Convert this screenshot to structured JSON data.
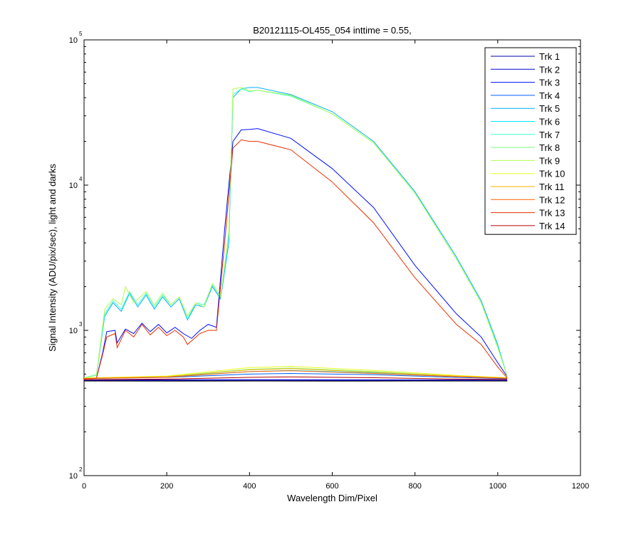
{
  "chart_data": {
    "type": "line",
    "title": "B20121115-OL455_054 inttime = 0.55,",
    "xlabel": "Wavelength Dim/Pixel",
    "ylabel": "Signal Intensity (ADU/pix/sec), light and darks",
    "xlim": [
      0,
      1200
    ],
    "ylim": [
      100,
      100000
    ],
    "yscale": "log",
    "xticks": [
      0,
      200,
      400,
      600,
      800,
      1000,
      1200
    ],
    "yticks": [
      {
        "base": "10",
        "exp": "2",
        "value": 100
      },
      {
        "base": "10",
        "exp": "3",
        "value": 1000
      },
      {
        "base": "10",
        "exp": "4",
        "value": 10000
      },
      {
        "base": "10",
        "exp": "5",
        "value": 100000
      }
    ],
    "grid": false,
    "legend_position": "top-right",
    "series": [
      {
        "name": "Trk 1",
        "color": "#0000a8",
        "points": [
          [
            0,
            450
          ],
          [
            40,
            452
          ],
          [
            200,
            452
          ],
          [
            400,
            453
          ],
          [
            600,
            452
          ],
          [
            800,
            452
          ],
          [
            1023,
            452
          ]
        ]
      },
      {
        "name": "Trk 2",
        "color": "#0000dc",
        "points": [
          [
            0,
            452
          ],
          [
            40,
            455
          ],
          [
            200,
            457
          ],
          [
            400,
            458
          ],
          [
            600,
            457
          ],
          [
            800,
            456
          ],
          [
            1023,
            455
          ]
        ]
      },
      {
        "name": "Trk 3",
        "color": "#0010ff",
        "points": [
          [
            0,
            462
          ],
          [
            30,
            470
          ],
          [
            45,
            700
          ],
          [
            55,
            980
          ],
          [
            75,
            1000
          ],
          [
            80,
            820
          ],
          [
            100,
            1020
          ],
          [
            120,
            950
          ],
          [
            140,
            1120
          ],
          [
            160,
            980
          ],
          [
            180,
            1100
          ],
          [
            200,
            960
          ],
          [
            220,
            1050
          ],
          [
            240,
            950
          ],
          [
            260,
            880
          ],
          [
            280,
            1000
          ],
          [
            300,
            1100
          ],
          [
            320,
            1050
          ],
          [
            340,
            5000
          ],
          [
            360,
            20000
          ],
          [
            380,
            24000
          ],
          [
            400,
            24200
          ],
          [
            420,
            24500
          ],
          [
            500,
            21000
          ],
          [
            600,
            13000
          ],
          [
            700,
            7000
          ],
          [
            800,
            2800
          ],
          [
            900,
            1300
          ],
          [
            960,
            900
          ],
          [
            1000,
            600
          ],
          [
            1023,
            480
          ]
        ]
      },
      {
        "name": "Trk 4",
        "color": "#0060ff",
        "points": [
          [
            0,
            465
          ],
          [
            200,
            475
          ],
          [
            400,
            500
          ],
          [
            500,
            505
          ],
          [
            700,
            495
          ],
          [
            900,
            475
          ],
          [
            1023,
            465
          ]
        ]
      },
      {
        "name": "Trk 5",
        "color": "#00b0ff",
        "points": [
          [
            0,
            470
          ],
          [
            30,
            490
          ],
          [
            50,
            1250
          ],
          [
            70,
            1550
          ],
          [
            90,
            1350
          ],
          [
            110,
            1800
          ],
          [
            130,
            1450
          ],
          [
            150,
            1750
          ],
          [
            170,
            1400
          ],
          [
            190,
            1700
          ],
          [
            210,
            1450
          ],
          [
            230,
            1650
          ],
          [
            250,
            1180
          ],
          [
            270,
            1500
          ],
          [
            290,
            1450
          ],
          [
            310,
            2000
          ],
          [
            330,
            1650
          ],
          [
            350,
            4000
          ],
          [
            360,
            40000
          ],
          [
            380,
            46000
          ],
          [
            400,
            47000
          ],
          [
            420,
            47000
          ],
          [
            500,
            42000
          ],
          [
            600,
            32000
          ],
          [
            700,
            20000
          ],
          [
            800,
            9000
          ],
          [
            900,
            3200
          ],
          [
            960,
            1600
          ],
          [
            1000,
            800
          ],
          [
            1023,
            480
          ]
        ]
      },
      {
        "name": "Trk 6",
        "color": "#00e8ff",
        "points": [
          [
            0,
            468
          ],
          [
            200,
            480
          ],
          [
            400,
            520
          ],
          [
            500,
            530
          ],
          [
            700,
            510
          ],
          [
            900,
            480
          ],
          [
            1023,
            470
          ]
        ]
      },
      {
        "name": "Trk 7",
        "color": "#40ffd0",
        "points": [
          [
            0,
            472
          ],
          [
            30,
            495
          ],
          [
            50,
            1300
          ],
          [
            70,
            1600
          ],
          [
            90,
            1400
          ],
          [
            110,
            1850
          ],
          [
            130,
            1500
          ],
          [
            150,
            1800
          ],
          [
            170,
            1450
          ],
          [
            190,
            1750
          ],
          [
            210,
            1500
          ],
          [
            230,
            1700
          ],
          [
            250,
            1200
          ],
          [
            270,
            1550
          ],
          [
            290,
            1500
          ],
          [
            310,
            2050
          ],
          [
            330,
            1700
          ],
          [
            350,
            4500
          ],
          [
            360,
            42000
          ],
          [
            380,
            46000
          ],
          [
            400,
            44000
          ],
          [
            420,
            45000
          ],
          [
            500,
            41000
          ],
          [
            600,
            31000
          ],
          [
            700,
            19500
          ],
          [
            800,
            8800
          ],
          [
            900,
            3100
          ],
          [
            960,
            1550
          ],
          [
            1000,
            780
          ],
          [
            1023,
            480
          ]
        ]
      },
      {
        "name": "Trk 8",
        "color": "#80ff80",
        "points": [
          [
            0,
            470
          ],
          [
            200,
            482
          ],
          [
            400,
            540
          ],
          [
            500,
            550
          ],
          [
            700,
            520
          ],
          [
            900,
            485
          ],
          [
            1023,
            472
          ]
        ]
      },
      {
        "name": "Trk 9",
        "color": "#b0ff50",
        "points": [
          [
            0,
            470
          ],
          [
            30,
            490
          ],
          [
            50,
            1400
          ],
          [
            70,
            1650
          ],
          [
            90,
            1500
          ],
          [
            100,
            2000
          ],
          [
            120,
            1550
          ],
          [
            150,
            1850
          ],
          [
            170,
            1500
          ],
          [
            190,
            1800
          ],
          [
            210,
            1500
          ],
          [
            230,
            1700
          ],
          [
            250,
            1250
          ],
          [
            270,
            1550
          ],
          [
            290,
            1450
          ],
          [
            310,
            2100
          ],
          [
            330,
            1700
          ],
          [
            350,
            4800
          ],
          [
            360,
            46000
          ],
          [
            380,
            47000
          ],
          [
            400,
            44500
          ],
          [
            420,
            45000
          ],
          [
            500,
            41500
          ],
          [
            600,
            31000
          ],
          [
            700,
            19500
          ],
          [
            800,
            8800
          ],
          [
            900,
            3100
          ],
          [
            960,
            1550
          ],
          [
            1000,
            760
          ],
          [
            1023,
            480
          ]
        ]
      },
      {
        "name": "Trk 10",
        "color": "#e8ff20",
        "points": [
          [
            0,
            470
          ],
          [
            200,
            485
          ],
          [
            400,
            555
          ],
          [
            500,
            565
          ],
          [
            700,
            530
          ],
          [
            900,
            490
          ],
          [
            1023,
            472
          ]
        ]
      },
      {
        "name": "Trk 11",
        "color": "#ffb000",
        "points": [
          [
            0,
            468
          ],
          [
            200,
            480
          ],
          [
            400,
            535
          ],
          [
            500,
            545
          ],
          [
            700,
            515
          ],
          [
            900,
            485
          ],
          [
            1023,
            470
          ]
        ]
      },
      {
        "name": "Trk 12",
        "color": "#ff6000",
        "points": [
          [
            0,
            466
          ],
          [
            200,
            476
          ],
          [
            400,
            520
          ],
          [
            500,
            528
          ],
          [
            700,
            505
          ],
          [
            900,
            480
          ],
          [
            1023,
            468
          ]
        ]
      },
      {
        "name": "Trk 13",
        "color": "#e83000",
        "points": [
          [
            0,
            462
          ],
          [
            30,
            468
          ],
          [
            45,
            680
          ],
          [
            55,
            900
          ],
          [
            75,
            950
          ],
          [
            80,
            760
          ],
          [
            100,
            1000
          ],
          [
            120,
            900
          ],
          [
            140,
            1100
          ],
          [
            160,
            930
          ],
          [
            180,
            1050
          ],
          [
            200,
            920
          ],
          [
            220,
            1000
          ],
          [
            240,
            900
          ],
          [
            250,
            800
          ],
          [
            280,
            950
          ],
          [
            300,
            1000
          ],
          [
            320,
            1000
          ],
          [
            340,
            4000
          ],
          [
            360,
            18000
          ],
          [
            380,
            20500
          ],
          [
            400,
            20000
          ],
          [
            420,
            20000
          ],
          [
            500,
            17500
          ],
          [
            600,
            10500
          ],
          [
            700,
            5500
          ],
          [
            800,
            2300
          ],
          [
            900,
            1100
          ],
          [
            960,
            800
          ],
          [
            1000,
            560
          ],
          [
            1023,
            470
          ]
        ]
      },
      {
        "name": "Trk 14",
        "color": "#b00000",
        "points": [
          [
            0,
            458
          ],
          [
            200,
            462
          ],
          [
            400,
            475
          ],
          [
            500,
            478
          ],
          [
            700,
            472
          ],
          [
            900,
            462
          ],
          [
            1023,
            460
          ]
        ]
      },
      {
        "name": "",
        "color": "#000000",
        "points": [
          [
            0,
            448
          ],
          [
            200,
            447
          ],
          [
            400,
            448
          ],
          [
            600,
            447
          ],
          [
            800,
            448
          ],
          [
            1023,
            448
          ]
        ]
      }
    ]
  }
}
